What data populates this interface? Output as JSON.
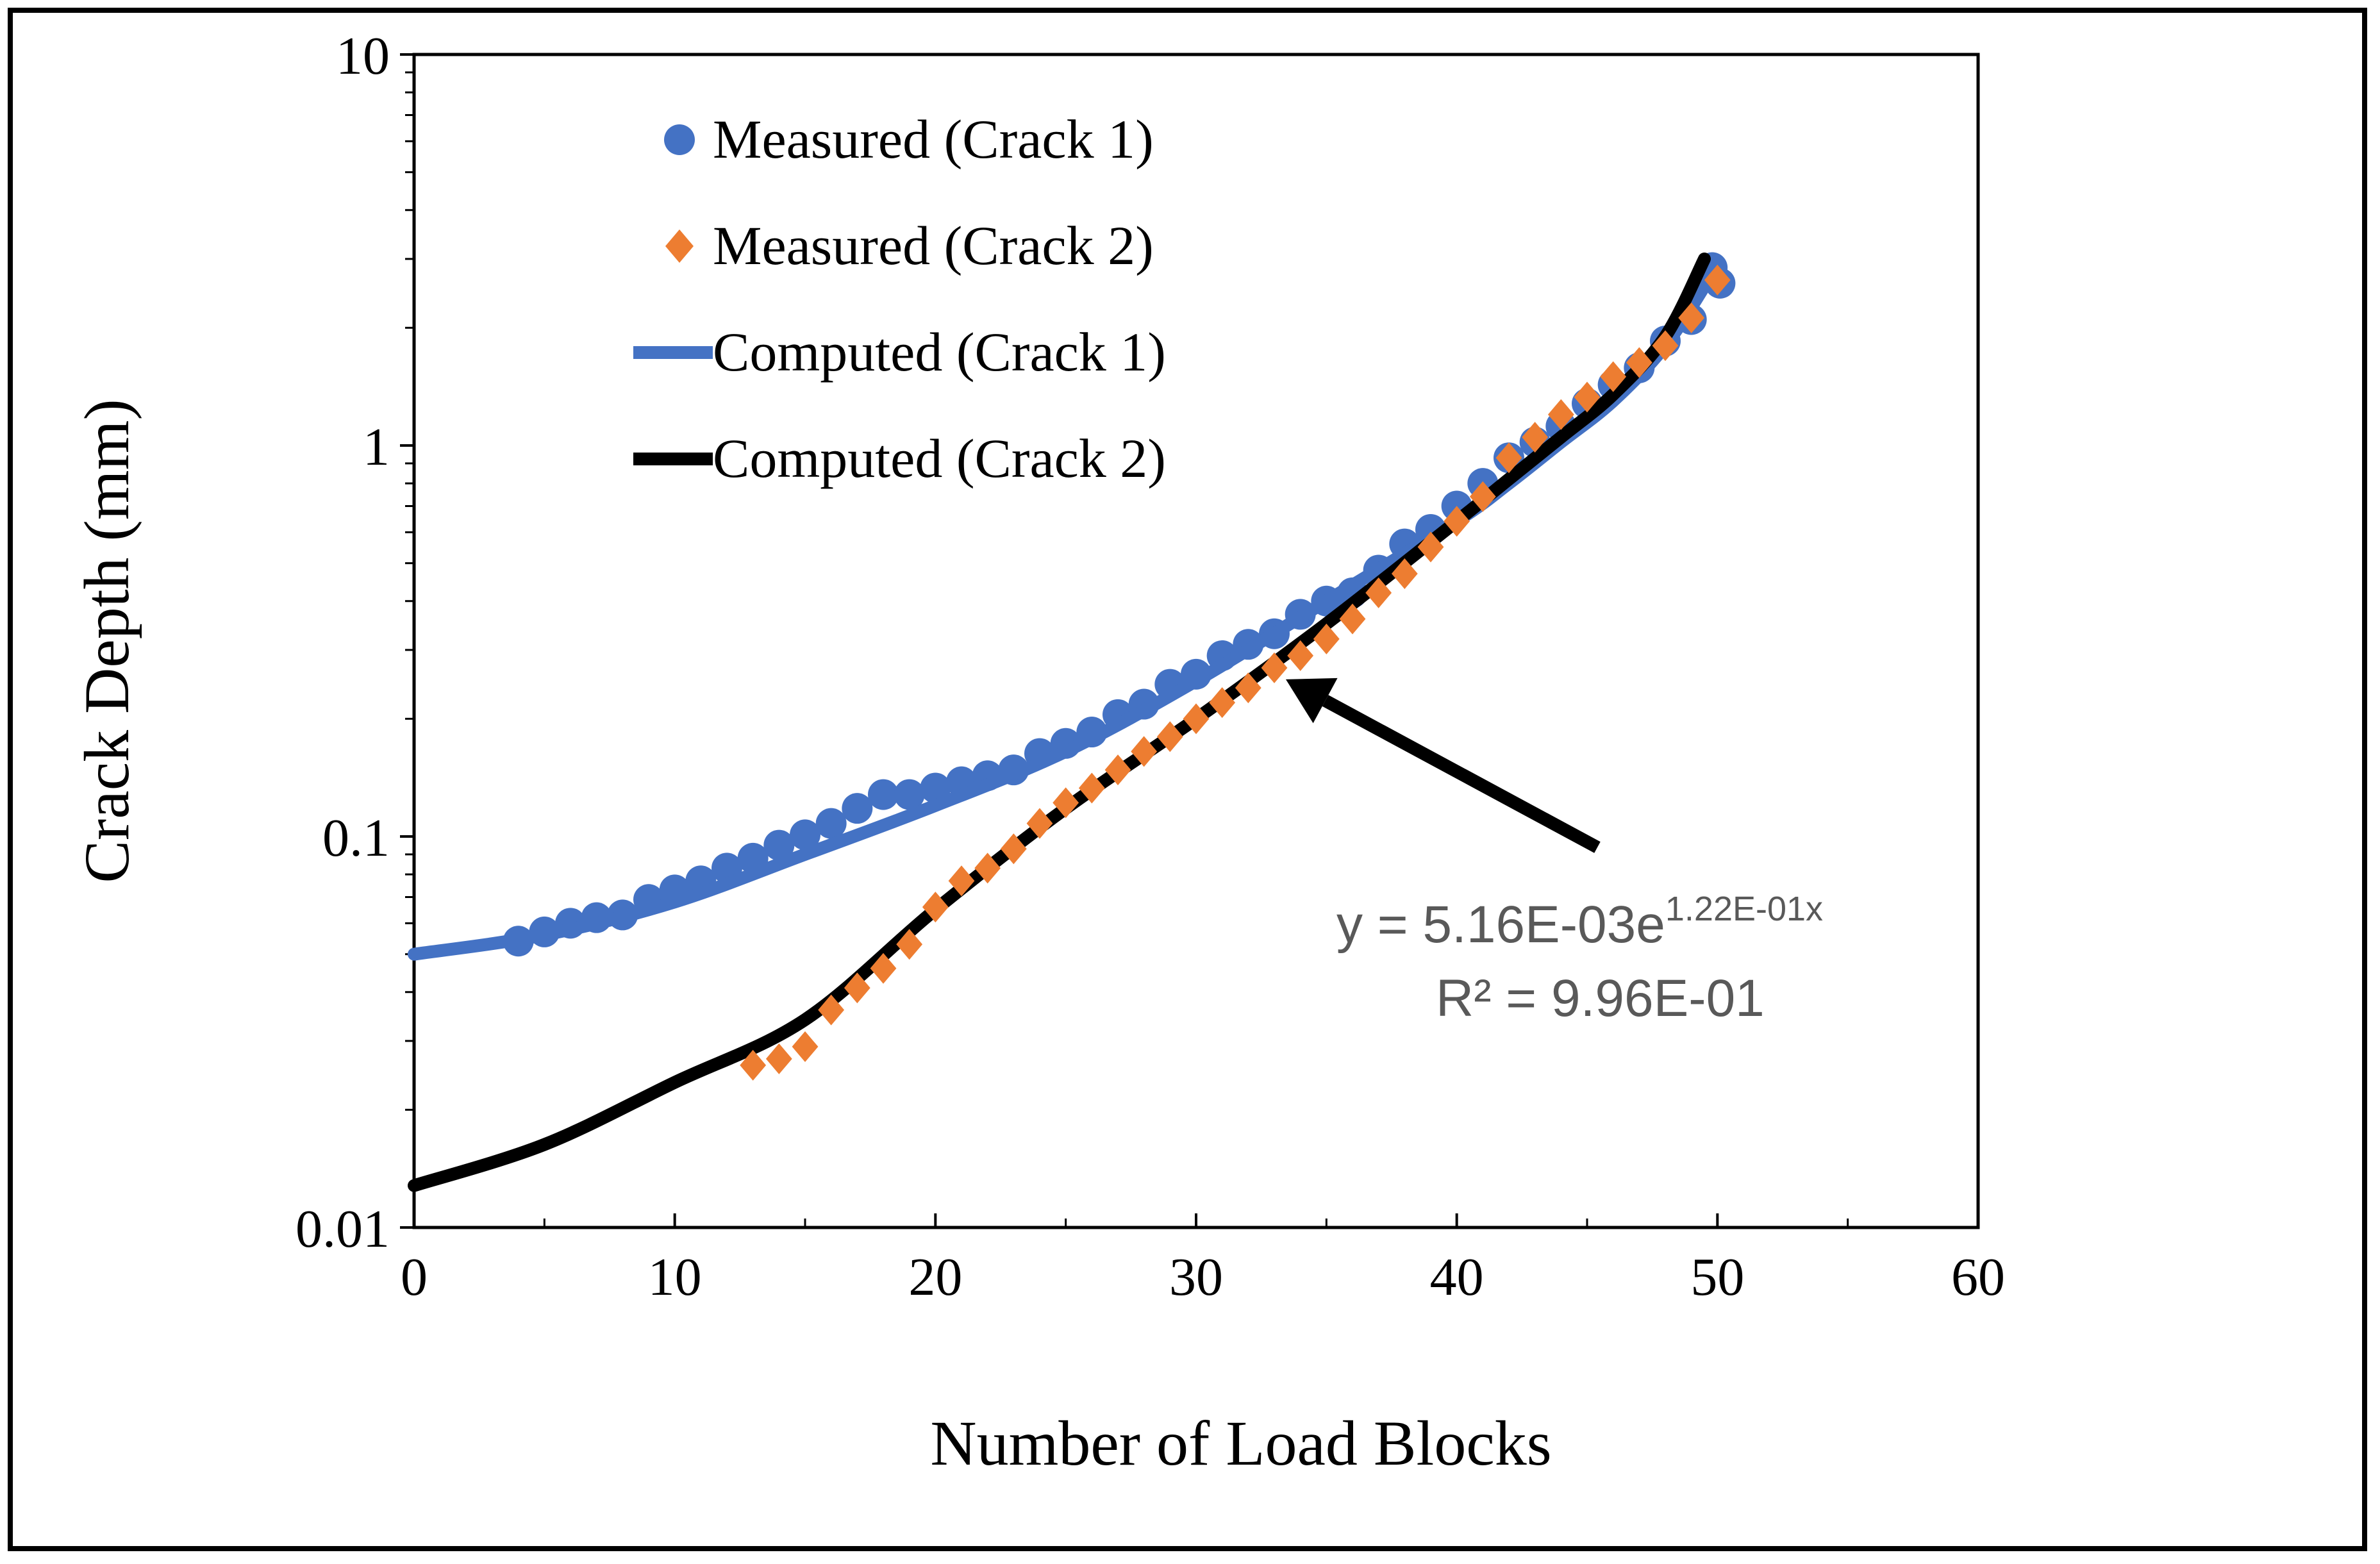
{
  "chart_data": {
    "type": "scatter",
    "title": "",
    "xlabel": "Number of Load Blocks",
    "ylabel": "Crack Depth (mm)",
    "xlim": [
      0,
      60
    ],
    "ylim": [
      0.01,
      10
    ],
    "yscale": "log",
    "grid": false,
    "legend_position": "top-left",
    "x_ticks": [
      0,
      10,
      20,
      30,
      40,
      50,
      60
    ],
    "x_tick_labels": [
      "0",
      "10",
      "20",
      "30",
      "40",
      "50",
      "60"
    ],
    "y_ticks": [
      0.01,
      0.1,
      1,
      10
    ],
    "y_tick_labels": [
      "0.01",
      "0.1",
      "1",
      "10"
    ],
    "series": [
      {
        "name": "Measured (Crack 1)",
        "kind": "markers",
        "marker": "circle",
        "color": "#4472C4",
        "x": [
          4,
          5,
          6,
          7,
          8,
          9,
          10,
          11,
          12,
          13,
          14,
          15,
          16,
          17,
          18,
          19,
          20,
          21,
          22,
          23,
          24,
          25,
          26,
          27,
          28,
          29,
          30,
          31,
          32,
          33,
          34,
          35,
          36,
          37,
          38,
          39,
          40,
          41,
          42,
          43,
          44,
          45,
          46,
          47,
          48,
          49,
          49.8,
          50.1
        ],
        "y": [
          0.054,
          0.057,
          0.06,
          0.062,
          0.063,
          0.069,
          0.073,
          0.077,
          0.083,
          0.088,
          0.095,
          0.101,
          0.108,
          0.118,
          0.128,
          0.128,
          0.133,
          0.138,
          0.143,
          0.148,
          0.163,
          0.173,
          0.185,
          0.205,
          0.218,
          0.245,
          0.26,
          0.29,
          0.31,
          0.33,
          0.37,
          0.4,
          0.42,
          0.48,
          0.56,
          0.61,
          0.7,
          0.8,
          0.93,
          1.02,
          1.12,
          1.28,
          1.43,
          1.58,
          1.85,
          2.1,
          2.85,
          2.6
        ]
      },
      {
        "name": "Measured (Crack 2)",
        "kind": "markers",
        "marker": "diamond",
        "color": "#ED7D31",
        "x": [
          13,
          14,
          15,
          16,
          17,
          18,
          19,
          20,
          21,
          22,
          23,
          24,
          25,
          26,
          27,
          28,
          29,
          30,
          31,
          32,
          33,
          34,
          35,
          36,
          37,
          38,
          39,
          40,
          41,
          42,
          43,
          44,
          45,
          46,
          47,
          48,
          49,
          50
        ],
        "y": [
          0.026,
          0.027,
          0.029,
          0.036,
          0.041,
          0.046,
          0.053,
          0.066,
          0.077,
          0.083,
          0.093,
          0.108,
          0.122,
          0.133,
          0.148,
          0.165,
          0.18,
          0.2,
          0.22,
          0.24,
          0.27,
          0.29,
          0.32,
          0.36,
          0.42,
          0.47,
          0.55,
          0.64,
          0.74,
          0.93,
          1.05,
          1.2,
          1.33,
          1.5,
          1.63,
          1.8,
          2.12,
          2.65
        ]
      },
      {
        "name": "Computed (Crack 1)",
        "kind": "line",
        "color": "#4472C4",
        "x": [
          0,
          5,
          10,
          15,
          20,
          25,
          30,
          35,
          40,
          42,
          44,
          46,
          48,
          49.8
        ],
        "y": [
          0.05,
          0.056,
          0.068,
          0.09,
          0.12,
          0.165,
          0.25,
          0.4,
          0.64,
          0.8,
          1.02,
          1.3,
          1.8,
          2.75
        ]
      },
      {
        "name": "Computed (Crack 2)",
        "kind": "line",
        "color": "#000000",
        "x": [
          0,
          5,
          10,
          15,
          20,
          25,
          30,
          35,
          40,
          42,
          44,
          46,
          48,
          49.5
        ],
        "y": [
          0.0128,
          0.0163,
          0.0235,
          0.034,
          0.065,
          0.118,
          0.2,
          0.35,
          0.64,
          0.82,
          1.05,
          1.35,
          1.9,
          3.0
        ]
      }
    ],
    "annotation": {
      "equation_prefix": "y = 5.16E-03e",
      "equation_exponent": "1.22E-01x",
      "r_squared": "R² = 9.96E-01",
      "arrow_points_to": {
        "x": 33,
        "y": 0.27
      }
    }
  }
}
